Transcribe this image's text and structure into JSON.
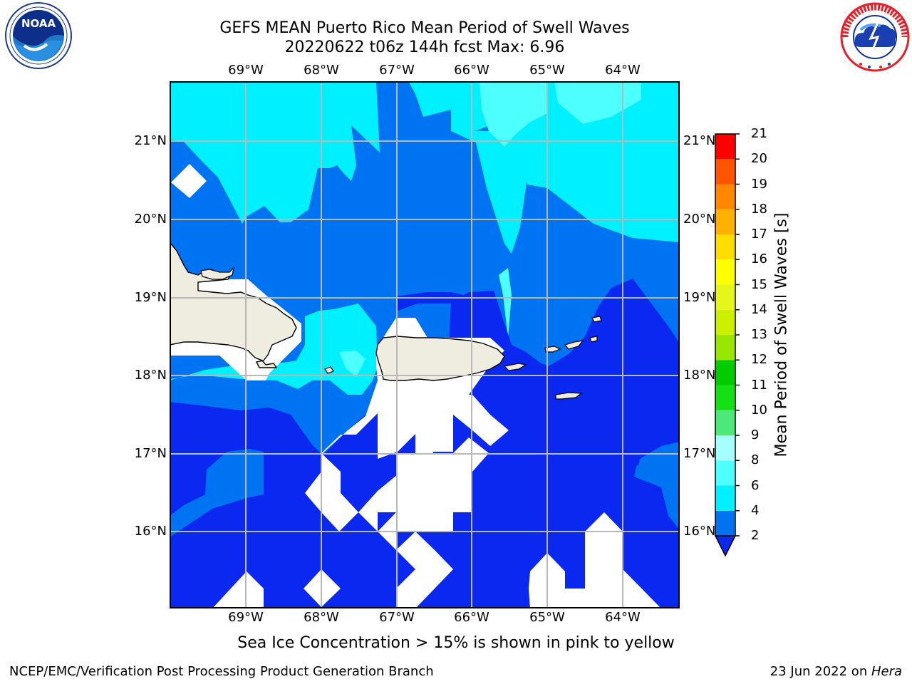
{
  "header": {
    "title_line1": "GEFS MEAN Puerto Rico Mean Period of Swell Waves",
    "title_line2": "20220622 t06z 144h fcst   Max: 6.96"
  },
  "logos": {
    "left": "noaa-logo",
    "right": "nws-logo"
  },
  "map": {
    "lon_labels": [
      "69°W",
      "68°W",
      "67°W",
      "66°W",
      "65°W",
      "64°W"
    ],
    "lat_labels": [
      "21°N",
      "20°N",
      "19°N",
      "18°N",
      "17°N",
      "16°N"
    ],
    "extent": {
      "lon": [
        -69.8,
        -63.1
      ],
      "lat": [
        15.0,
        21.8
      ]
    },
    "gridlines": true,
    "land_color": "#eeeddf",
    "masked_color": "#ffffff"
  },
  "colorbar": {
    "label": "Mean Period of Swell Waves [s]",
    "ticks": [
      "2",
      "4",
      "6",
      "8",
      "9",
      "10",
      "11",
      "12",
      "13",
      "14",
      "15",
      "16",
      "17",
      "18",
      "19",
      "20",
      "21"
    ],
    "colors": [
      "#0a28f0",
      "#0073f2",
      "#00f0ff",
      "#4dffff",
      "#a6ffff",
      "#4de87a",
      "#14e014",
      "#00cc00",
      "#99e600",
      "#ccf000",
      "#e6f51a",
      "#ffff00",
      "#ffdd00",
      "#ffb000",
      "#ff8800",
      "#ff5500",
      "#ff0000"
    ],
    "extend_min": true
  },
  "chart_data": {
    "type": "heatmap",
    "title": "GEFS MEAN Puerto Rico Mean Period of Swell Waves",
    "subtitle": "20220622 t06z 144h fcst   Max: 6.96",
    "x_ticks": [
      "69°W",
      "68°W",
      "67°W",
      "66°W",
      "65°W",
      "64°W"
    ],
    "y_ticks": [
      "21°N",
      "20°N",
      "19°N",
      "18°N",
      "17°N",
      "16°N"
    ],
    "colorbar_label": "Mean Period of Swell Waves [s]",
    "levels": [
      2,
      4,
      6,
      8,
      9,
      10,
      11,
      12,
      13,
      14,
      15,
      16,
      17,
      18,
      19,
      20,
      21
    ],
    "max": 6.96
  },
  "footer": {
    "note": "Sea Ice Concentration > 15% is shown in pink to yellow",
    "left": "NCEP/EMC/Verification Post Processing Product Generation Branch",
    "right_date": "23 Jun 2022 on ",
    "right_host": "Hera"
  }
}
